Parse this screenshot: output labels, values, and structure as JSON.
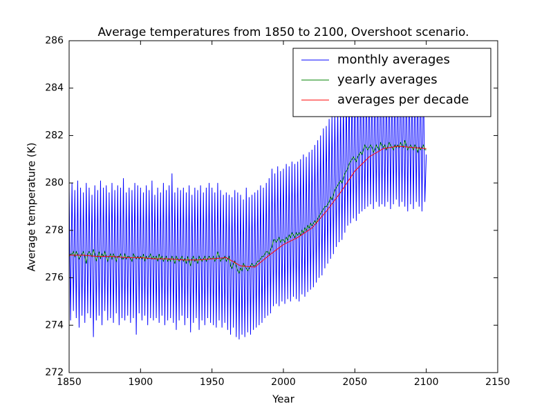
{
  "chart_data": {
    "type": "line",
    "title": "Average temperatures from 1850 to 2100, Overshoot scenario.",
    "xlabel": "Year",
    "ylabel": "Average temperature (K)",
    "xlim": [
      1850,
      2150
    ],
    "xticks": [
      1850,
      1900,
      1950,
      2000,
      2050,
      2100,
      2150
    ],
    "ylim": [
      272,
      286
    ],
    "yticks": [
      272,
      274,
      276,
      278,
      280,
      282,
      284,
      286
    ],
    "legend": "upper right",
    "x": [
      1850,
      1851,
      1852,
      1853,
      1854,
      1855,
      1856,
      1857,
      1858,
      1859,
      1860,
      1861,
      1862,
      1863,
      1864,
      1865,
      1866,
      1867,
      1868,
      1869,
      1870,
      1871,
      1872,
      1873,
      1874,
      1875,
      1876,
      1877,
      1878,
      1879,
      1880,
      1881,
      1882,
      1883,
      1884,
      1885,
      1886,
      1887,
      1888,
      1889,
      1890,
      1891,
      1892,
      1893,
      1894,
      1895,
      1896,
      1897,
      1898,
      1899,
      1900,
      1901,
      1902,
      1903,
      1904,
      1905,
      1906,
      1907,
      1908,
      1909,
      1910,
      1911,
      1912,
      1913,
      1914,
      1915,
      1916,
      1917,
      1918,
      1919,
      1920,
      1921,
      1922,
      1923,
      1924,
      1925,
      1926,
      1927,
      1928,
      1929,
      1930,
      1931,
      1932,
      1933,
      1934,
      1935,
      1936,
      1937,
      1938,
      1939,
      1940,
      1941,
      1942,
      1943,
      1944,
      1945,
      1946,
      1947,
      1948,
      1949,
      1950,
      1951,
      1952,
      1953,
      1954,
      1955,
      1956,
      1957,
      1958,
      1959,
      1960,
      1961,
      1962,
      1963,
      1964,
      1965,
      1966,
      1967,
      1968,
      1969,
      1970,
      1971,
      1972,
      1973,
      1974,
      1975,
      1976,
      1977,
      1978,
      1979,
      1980,
      1981,
      1982,
      1983,
      1984,
      1985,
      1986,
      1987,
      1988,
      1989,
      1990,
      1991,
      1992,
      1993,
      1994,
      1995,
      1996,
      1997,
      1998,
      1999,
      2000,
      2001,
      2002,
      2003,
      2004,
      2005,
      2006,
      2007,
      2008,
      2009,
      2010,
      2011,
      2012,
      2013,
      2014,
      2015,
      2016,
      2017,
      2018,
      2019,
      2020,
      2021,
      2022,
      2023,
      2024,
      2025,
      2026,
      2027,
      2028,
      2029,
      2030,
      2031,
      2032,
      2033,
      2034,
      2035,
      2036,
      2037,
      2038,
      2039,
      2040,
      2041,
      2042,
      2043,
      2044,
      2045,
      2046,
      2047,
      2048,
      2049,
      2050,
      2051,
      2052,
      2053,
      2054,
      2055,
      2056,
      2057,
      2058,
      2059,
      2060,
      2061,
      2062,
      2063,
      2064,
      2065,
      2066,
      2067,
      2068,
      2069,
      2070,
      2071,
      2072,
      2073,
      2074,
      2075,
      2076,
      2077,
      2078,
      2079,
      2080,
      2081,
      2082,
      2083,
      2084,
      2085,
      2086,
      2087,
      2088,
      2089,
      2090,
      2091,
      2092,
      2093,
      2094,
      2095,
      2096,
      2097,
      2098,
      2099,
      2100
    ],
    "series": [
      {
        "name": "monthly averages",
        "color": "#0000ff",
        "values": [
          279.9,
          274.2,
          280.0,
          274.6,
          279.7,
          274.3,
          280.1,
          273.9,
          279.8,
          274.4,
          279.6,
          274.1,
          280.0,
          274.5,
          279.8,
          274.3,
          279.5,
          273.5,
          279.9,
          274.2,
          279.7,
          274.4,
          280.1,
          274.0,
          279.8,
          274.6,
          279.9,
          274.2,
          279.6,
          274.3,
          280.0,
          274.1,
          279.7,
          274.5,
          279.9,
          274.0,
          279.8,
          274.3,
          280.2,
          274.2,
          279.6,
          274.4,
          279.8,
          274.1,
          279.7,
          274.3,
          280.0,
          273.6,
          279.9,
          274.5,
          279.8,
          274.2,
          279.6,
          274.4,
          279.9,
          274.0,
          279.7,
          274.3,
          280.1,
          274.2,
          279.5,
          274.3,
          279.8,
          274.1,
          279.6,
          274.4,
          280.0,
          274.0,
          279.7,
          274.2,
          279.9,
          274.3,
          280.4,
          274.1,
          279.6,
          273.8,
          279.8,
          274.2,
          279.7,
          274.4,
          279.8,
          274.0,
          279.6,
          274.3,
          279.9,
          273.7,
          279.5,
          274.1,
          279.8,
          274.3,
          279.7,
          273.8,
          279.9,
          274.2,
          279.6,
          274.0,
          279.8,
          274.3,
          280.0,
          274.1,
          279.8,
          274.0,
          279.6,
          273.9,
          280.0,
          274.2,
          279.7,
          273.9,
          279.5,
          274.1,
          279.6,
          273.8,
          279.5,
          273.6,
          279.4,
          273.9,
          279.7,
          273.5,
          279.6,
          273.4,
          279.5,
          273.6,
          279.3,
          273.5,
          279.8,
          273.7,
          279.4,
          273.6,
          279.5,
          273.8,
          279.6,
          273.9,
          279.7,
          274.0,
          279.9,
          274.1,
          279.8,
          274.3,
          280.0,
          274.4,
          280.2,
          274.5,
          280.6,
          274.8,
          280.4,
          274.9,
          280.7,
          274.8,
          280.5,
          275.0,
          280.6,
          274.9,
          280.8,
          275.1,
          280.7,
          275.0,
          280.9,
          275.2,
          280.8,
          275.1,
          280.9,
          275.0,
          281.0,
          275.3,
          281.2,
          275.2,
          281.1,
          275.4,
          281.3,
          275.5,
          281.4,
          275.6,
          281.6,
          275.8,
          281.8,
          276.0,
          282.0,
          276.1,
          282.3,
          276.4,
          282.4,
          276.6,
          282.7,
          276.8,
          282.9,
          277.0,
          283.1,
          277.3,
          283.3,
          277.5,
          283.4,
          277.6,
          283.7,
          277.9,
          283.9,
          278.2,
          284.0,
          278.3,
          284.2,
          278.5,
          284.3,
          278.4,
          284.1,
          278.7,
          284.5,
          278.8,
          284.4,
          278.9,
          284.6,
          279.0,
          284.5,
          279.1,
          284.7,
          278.9,
          284.6,
          279.2,
          284.4,
          279.0,
          284.8,
          279.1,
          284.6,
          279.0,
          284.5,
          279.2,
          284.7,
          278.9,
          284.8,
          279.1,
          284.6,
          279.3,
          284.7,
          279.0,
          284.9,
          279.2,
          284.6,
          279.0,
          284.8,
          278.8,
          284.7,
          279.1,
          284.6,
          278.9,
          284.8,
          279.2,
          284.5,
          279.0,
          284.7,
          278.8,
          284.6,
          279.2,
          281.2
        ]
      },
      {
        "name": "yearly averages",
        "color": "#008000",
        "values": [
          276.9,
          277.0,
          277.0,
          277.1,
          276.9,
          277.1,
          277.0,
          276.8,
          276.9,
          277.0,
          277.1,
          276.9,
          276.6,
          277.0,
          277.1,
          277.0,
          276.9,
          277.2,
          277.0,
          276.7,
          276.9,
          277.1,
          276.8,
          277.0,
          276.9,
          277.1,
          276.9,
          276.7,
          276.9,
          277.0,
          276.8,
          277.0,
          276.9,
          276.7,
          276.9,
          276.9,
          277.0,
          276.8,
          276.8,
          277.0,
          276.8,
          276.9,
          276.9,
          276.8,
          276.7,
          277.0,
          276.9,
          276.8,
          276.9,
          276.8,
          276.9,
          276.8,
          277.0,
          276.7,
          276.9,
          276.8,
          276.9,
          277.0,
          276.8,
          276.9,
          276.8,
          276.9,
          276.7,
          277.0,
          276.8,
          276.9,
          276.7,
          276.8,
          276.9,
          276.7,
          276.8,
          276.7,
          276.9,
          276.8,
          276.6,
          276.9,
          276.8,
          276.7,
          276.8,
          276.9,
          276.7,
          276.8,
          276.6,
          276.9,
          276.7,
          276.5,
          276.8,
          276.9,
          276.7,
          276.8,
          276.6,
          276.9,
          276.8,
          276.7,
          276.8,
          276.9,
          276.7,
          276.8,
          276.9,
          276.8,
          276.8,
          276.9,
          276.7,
          276.8,
          277.1,
          276.9,
          276.7,
          276.8,
          276.8,
          276.9,
          276.7,
          276.8,
          276.9,
          276.5,
          276.4,
          276.6,
          276.7,
          276.5,
          276.3,
          276.2,
          276.4,
          276.3,
          276.6,
          276.5,
          276.4,
          276.3,
          276.4,
          276.5,
          276.6,
          276.5,
          276.5,
          276.6,
          276.7,
          276.7,
          276.8,
          276.9,
          276.9,
          277.0,
          277.1,
          277.1,
          277.0,
          277.2,
          277.3,
          277.6,
          277.6,
          277.5,
          277.6,
          277.7,
          277.5,
          277.6,
          277.6,
          277.5,
          277.7,
          277.6,
          277.8,
          277.7,
          277.9,
          277.8,
          277.7,
          277.9,
          277.8,
          277.9,
          277.8,
          278.0,
          277.9,
          278.1,
          278.0,
          278.2,
          278.1,
          278.3,
          278.2,
          278.3,
          278.4,
          278.3,
          278.5,
          278.6,
          278.7,
          278.8,
          278.9,
          279.0,
          279.0,
          279.1,
          279.2,
          279.4,
          279.3,
          279.5,
          279.7,
          279.8,
          279.9,
          280.0,
          280.1,
          280.0,
          280.2,
          280.4,
          280.5,
          280.6,
          280.8,
          280.9,
          281.0,
          281.1,
          281.0,
          280.9,
          281.1,
          281.2,
          281.3,
          281.2,
          281.4,
          281.6,
          281.5,
          281.4,
          281.5,
          281.6,
          281.5,
          281.3,
          281.4,
          281.6,
          281.5,
          281.4,
          281.7,
          281.6,
          281.5,
          281.6,
          281.4,
          281.5,
          281.7,
          281.6,
          281.5,
          281.4,
          281.6,
          281.5,
          281.6,
          281.5,
          281.7,
          281.6,
          281.5,
          281.8,
          281.6,
          281.4,
          281.5,
          281.6,
          281.5,
          281.4,
          281.6,
          281.5,
          281.3,
          281.5,
          281.4,
          281.5,
          281.6,
          281.4,
          281.4
        ]
      },
      {
        "name": "averages per decade",
        "color": "#ff0000",
        "x": [
          1850,
          1860,
          1870,
          1880,
          1890,
          1900,
          1910,
          1920,
          1930,
          1940,
          1950,
          1960,
          1970,
          1980,
          1990,
          2000,
          2010,
          2020,
          2030,
          2040,
          2050,
          2060,
          2070,
          2080,
          2090,
          2100
        ],
        "values": [
          276.95,
          276.95,
          276.9,
          276.9,
          276.85,
          276.85,
          276.8,
          276.8,
          276.75,
          276.75,
          276.8,
          276.85,
          276.5,
          276.45,
          276.95,
          277.4,
          277.7,
          278.1,
          278.8,
          279.6,
          280.5,
          281.1,
          281.45,
          281.55,
          281.5,
          281.45
        ]
      }
    ]
  }
}
